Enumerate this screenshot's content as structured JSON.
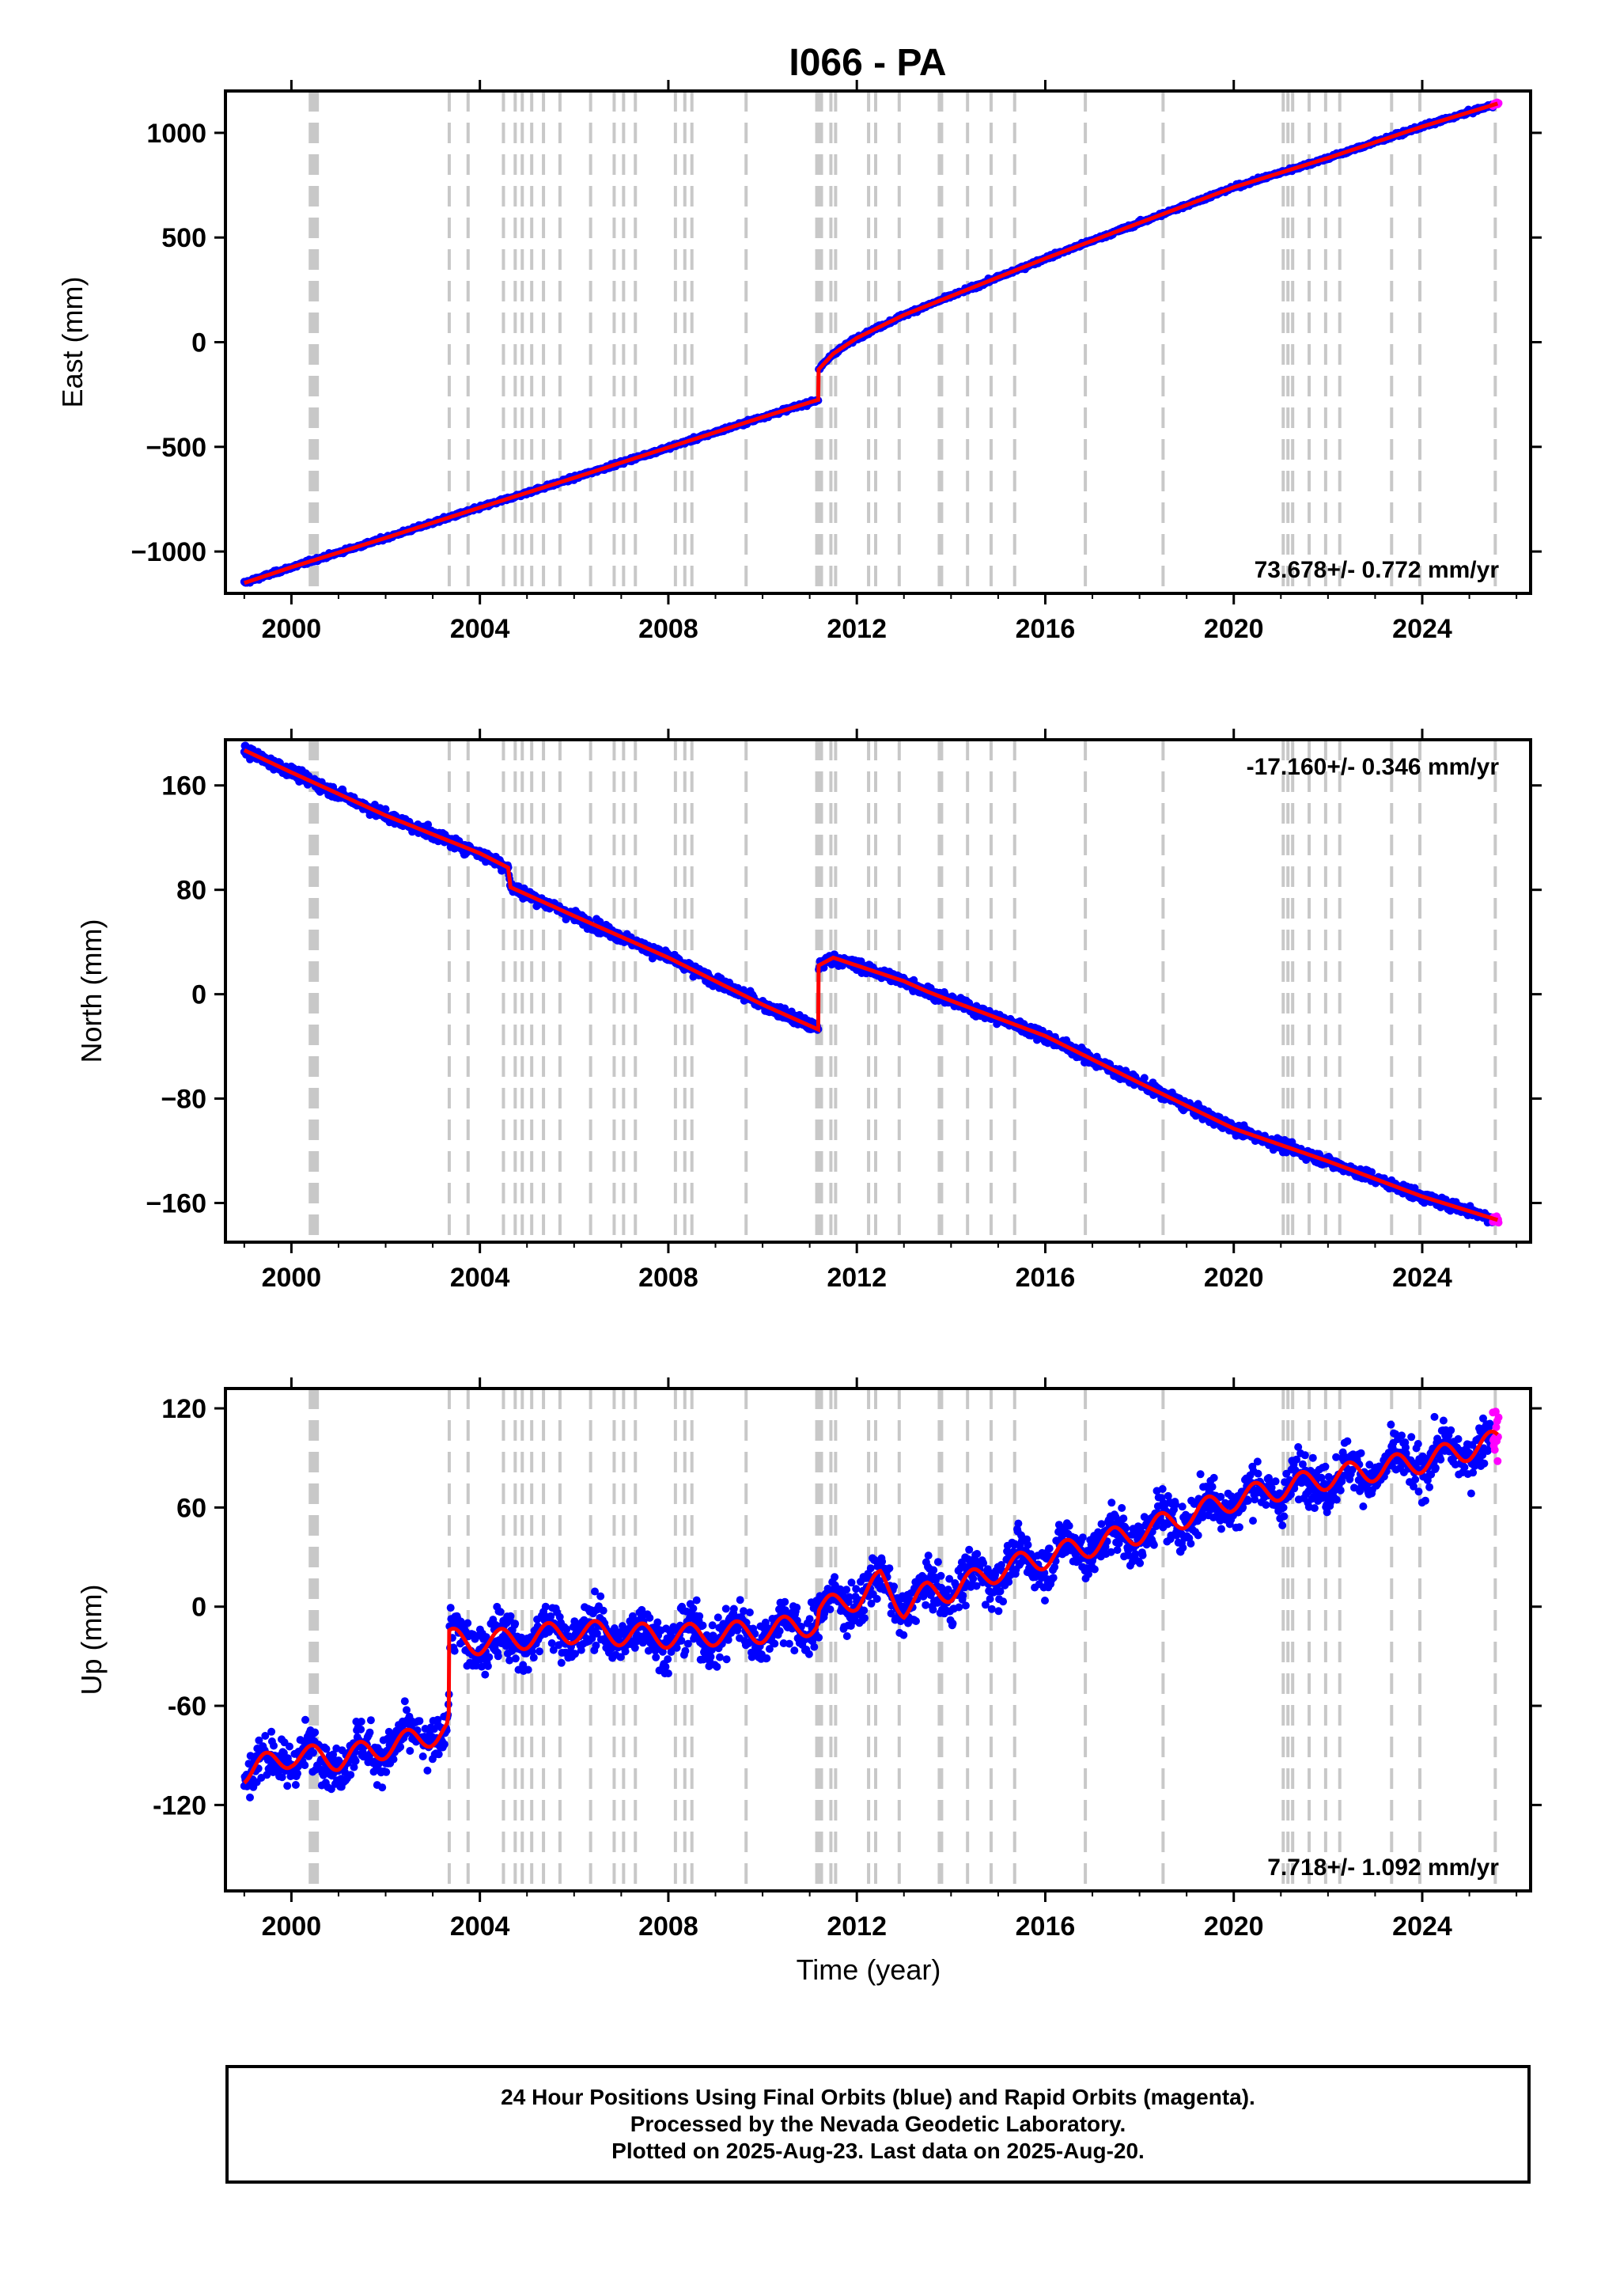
{
  "title": "I066 - PA",
  "colors": {
    "final_orbits": "#0000ff",
    "rapid_orbits": "#ff00ff",
    "model": "#ff0000",
    "event_lines": "#c8c8c8",
    "frame": "#000000"
  },
  "x_axis": {
    "label": "Time (year)",
    "range": [
      1998.6,
      2026.3
    ],
    "ticks": [
      2000,
      2004,
      2008,
      2012,
      2016,
      2020,
      2024
    ],
    "tick_labels": [
      "2000",
      "2004",
      "2008",
      "2012",
      "2016",
      "2020",
      "2024"
    ]
  },
  "event_lines": [
    2000.4,
    2000.45,
    2000.5,
    2000.55,
    2003.35,
    2003.75,
    2004.5,
    2004.75,
    2004.9,
    2005.1,
    2005.35,
    2005.7,
    2006.35,
    2006.85,
    2007.05,
    2007.3,
    2008.15,
    2008.35,
    2008.5,
    2009.65,
    2011.15,
    2011.2,
    2011.25,
    2011.45,
    2011.55,
    2012.25,
    2012.4,
    2012.9,
    2013.75,
    2013.8,
    2014.35,
    2014.85,
    2015.35,
    2016.85,
    2018.5,
    2021.05,
    2021.15,
    2021.25,
    2021.6,
    2021.95,
    2022.25,
    2023.35,
    2023.95,
    2025.55
  ],
  "chart_data": [
    {
      "type": "scatter",
      "name": "east",
      "ylabel": "East (mm)",
      "ylim": [
        -1200,
        1200
      ],
      "yticks": [
        -1000,
        -500,
        0,
        500,
        1000
      ],
      "ytick_labels": [
        "−1000",
        "−500",
        "0",
        "500",
        "1000"
      ],
      "velocity_label": "73.678+/- 0.772 mm/yr",
      "velocity_label_position": "bottom-right",
      "model": {
        "name": "fit",
        "x": [
          1999.0,
          2000.0,
          2002.0,
          2004.0,
          2006.0,
          2008.0,
          2010.0,
          2011.18,
          2011.19,
          2011.5,
          2012.0,
          2013.0,
          2014.0,
          2016.0,
          2018.0,
          2020.0,
          2022.0,
          2024.0,
          2025.6
        ],
        "y": [
          -1150,
          -1075,
          -935,
          -790,
          -648,
          -503,
          -358,
          -275,
          -130,
          -55,
          20,
          130,
          220,
          400,
          570,
          740,
          880,
          1030,
          1140
        ]
      },
      "final_orbit_span": [
        1999.0,
        2025.5
      ],
      "rapid_orbit_span": [
        2025.5,
        2025.62
      ]
    },
    {
      "type": "scatter",
      "name": "north",
      "ylabel": "North (mm)",
      "ylim": [
        -190,
        195
      ],
      "yticks": [
        -160,
        -80,
        0,
        80,
        160
      ],
      "ytick_labels": [
        "−160",
        "−80",
        "0",
        "80",
        "160"
      ],
      "velocity_label": "-17.160+/- 0.346 mm/yr",
      "velocity_label_position": "top-right",
      "model": {
        "name": "fit",
        "x": [
          1999.0,
          2000.0,
          2002.0,
          2004.0,
          2004.6,
          2004.65,
          2006.0,
          2008.0,
          2010.0,
          2011.18,
          2011.19,
          2011.5,
          2012.0,
          2013.0,
          2013.5,
          2014.0,
          2016.0,
          2018.0,
          2020.0,
          2022.0,
          2024.0,
          2025.6
        ],
        "y": [
          187,
          170,
          137,
          108,
          97,
          82,
          60,
          28,
          -8,
          -27,
          22,
          28,
          22,
          10,
          2,
          -5,
          -32,
          -68,
          -103,
          -128,
          -155,
          -173
        ]
      },
      "final_orbit_span": [
        1999.0,
        2025.5
      ],
      "rapid_orbit_span": [
        2025.5,
        2025.62
      ]
    },
    {
      "type": "scatter",
      "name": "up",
      "ylabel": "Up (mm)",
      "ylim": [
        -172,
        132
      ],
      "yticks": [
        -120,
        -60,
        0,
        60,
        120
      ],
      "ytick_labels": [
        "-120",
        "-60",
        "0",
        "60",
        "120"
      ],
      "velocity_label": "7.718+/- 1.092 mm/yr",
      "velocity_label_position": "bottom-right",
      "model": {
        "name": "fit",
        "x": [
          1999.0,
          2000.0,
          2001.0,
          2002.0,
          2003.3,
          2003.34,
          2003.35,
          2004.0,
          2006.0,
          2008.0,
          2010.0,
          2011.15,
          2011.2,
          2012.0,
          2012.5,
          2013.0,
          2013.5,
          2014.0,
          2015.0,
          2016.0,
          2018.0,
          2020.0,
          2022.0,
          2024.0,
          2025.6
        ],
        "y": [
          -100,
          -90,
          -92,
          -85,
          -75,
          -70,
          -20,
          -22,
          -15,
          -18,
          -15,
          -10,
          -2,
          5,
          15,
          0,
          8,
          10,
          22,
          30,
          45,
          65,
          78,
          88,
          100
        ]
      },
      "seasonal_amplitude": 7,
      "final_orbit_span": [
        1999.0,
        2025.5
      ],
      "rapid_orbit_span": [
        2025.5,
        2025.62
      ]
    }
  ],
  "caption": {
    "line1": "24 Hour Positions Using Final Orbits (blue) and Rapid Orbits (magenta).",
    "line2": "Processed by the Nevada Geodetic Laboratory.",
    "line3": "Plotted on 2025-Aug-23. Last data on 2025-Aug-20."
  }
}
